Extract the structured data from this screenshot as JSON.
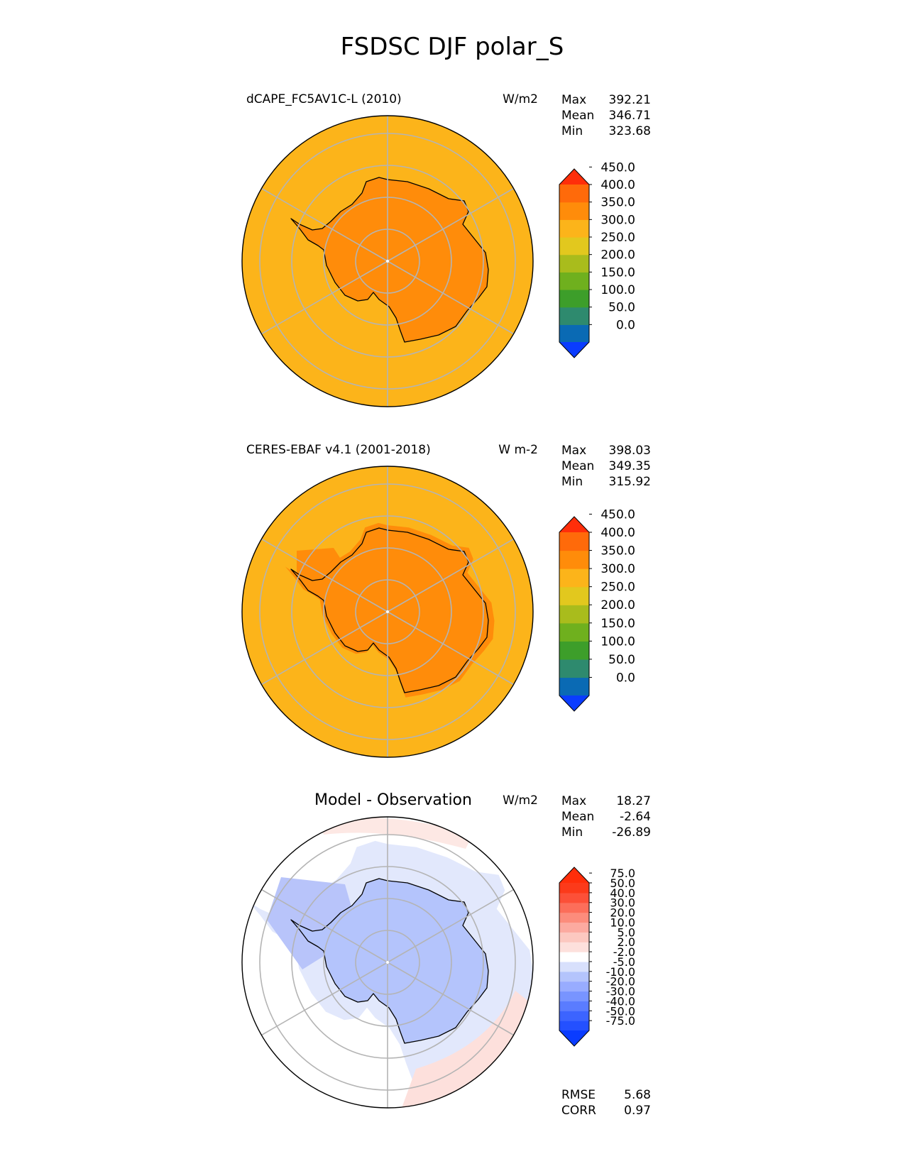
{
  "chart_data": {
    "type": "heatmap",
    "title": "FSDSC DJF polar_S",
    "panels": [
      {
        "title": "dCAPE_FC5AV1C-L (2010)",
        "units": "W/m2",
        "stats": [
          {
            "label": "Max",
            "value": "392.21"
          },
          {
            "label": "Mean",
            "value": "346.71"
          },
          {
            "label": "Min",
            "value": "323.68"
          }
        ],
        "colorbar": {
          "levels": [
            "0.0",
            "50.0",
            "100.0",
            "150.0",
            "200.0",
            "250.0",
            "300.0",
            "350.0",
            "400.0",
            "450.0"
          ],
          "colors": [
            "#0a3cff",
            "#0a6ab4",
            "#2e8a6e",
            "#3d9e2a",
            "#6fb01e",
            "#a9bc1c",
            "#e2c81e",
            "#fcb41a",
            "#ff8c0a",
            "#ff6a0a",
            "#ff2e0a"
          ],
          "extend": "both"
        },
        "fields": {
          "ocean": 345,
          "continent": 395
        }
      },
      {
        "title": "CERES-EBAF v4.1 (2001-2018)",
        "units": "W m-2",
        "stats": [
          {
            "label": "Max",
            "value": "398.03"
          },
          {
            "label": "Mean",
            "value": "349.35"
          },
          {
            "label": "Min",
            "value": "315.92"
          }
        ],
        "colorbar": {
          "levels": [
            "0.0",
            "50.0",
            "100.0",
            "150.0",
            "200.0",
            "250.0",
            "300.0",
            "350.0",
            "400.0",
            "450.0"
          ],
          "colors": [
            "#0a3cff",
            "#0a6ab4",
            "#2e8a6e",
            "#3d9e2a",
            "#6fb01e",
            "#a9bc1c",
            "#e2c81e",
            "#fcb41a",
            "#ff8c0a",
            "#ff6a0a",
            "#ff2e0a"
          ],
          "extend": "both"
        },
        "fields": {
          "ocean": 345,
          "continent": 395
        }
      },
      {
        "title": "Model - Observation",
        "units": "W/m2",
        "stats": [
          {
            "label": "Max",
            "value": "18.27"
          },
          {
            "label": "Mean",
            "value": "-2.64"
          },
          {
            "label": "Min",
            "value": "-26.89"
          }
        ],
        "colorbar": {
          "levels": [
            "-75.0",
            "-50.0",
            "-40.0",
            "-30.0",
            "-20.0",
            "-10.0",
            "-5.0",
            "-2.0",
            "2.0",
            "5.0",
            "10.0",
            "20.0",
            "30.0",
            "40.0",
            "50.0",
            "75.0"
          ],
          "colors": [
            "#0a3cff",
            "#2450ff",
            "#3c64ff",
            "#5a7cff",
            "#7894ff",
            "#98acff",
            "#b4c4fc",
            "#d8e0fc",
            "#ffffff",
            "#fde0dc",
            "#fcc8c0",
            "#fcaaa0",
            "#fc8c7c",
            "#fc6e5a",
            "#fc5038",
            "#fc3a1a",
            "#ff2e0a"
          ],
          "extend": "both"
        },
        "fields": {
          "ocean": 1,
          "continent": -9
        }
      }
    ],
    "metrics": [
      {
        "label": "RMSE",
        "value": "5.68"
      },
      {
        "label": "CORR",
        "value": "0.97"
      }
    ]
  }
}
